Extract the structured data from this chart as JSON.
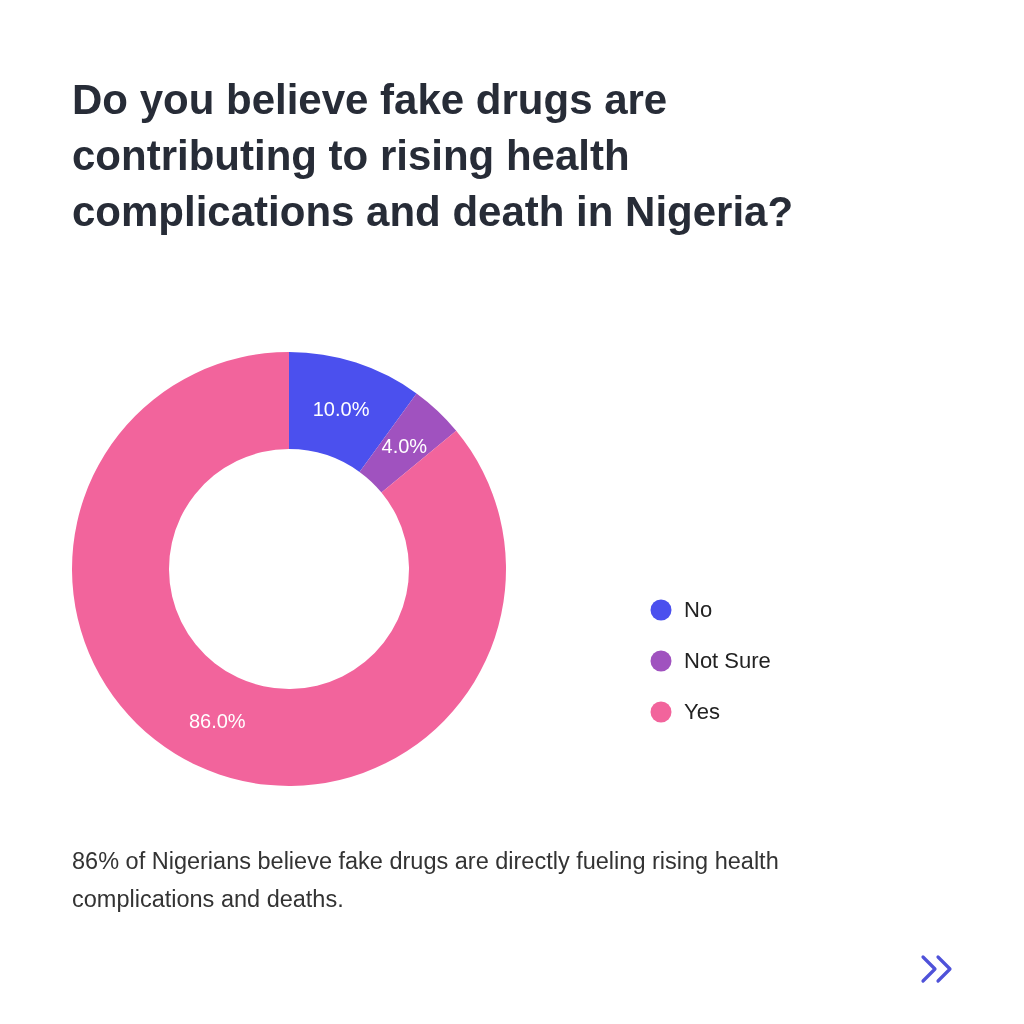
{
  "chart_data": {
    "type": "donut",
    "title": "Do you believe fake drugs are contributing to rising health complications and death in Nigeria?",
    "categories": [
      "No",
      "Not Sure",
      "Yes"
    ],
    "values": [
      10,
      4,
      86
    ],
    "colors": [
      "#4b50ee",
      "#a052bf",
      "#f2649c"
    ],
    "value_labels": [
      "10.0%",
      "4.0%",
      "86.0%"
    ],
    "legend": "right",
    "annotations": [
      "86% of Nigerians believe fake drugs are directly fueling rising health complications and deaths."
    ]
  }
}
